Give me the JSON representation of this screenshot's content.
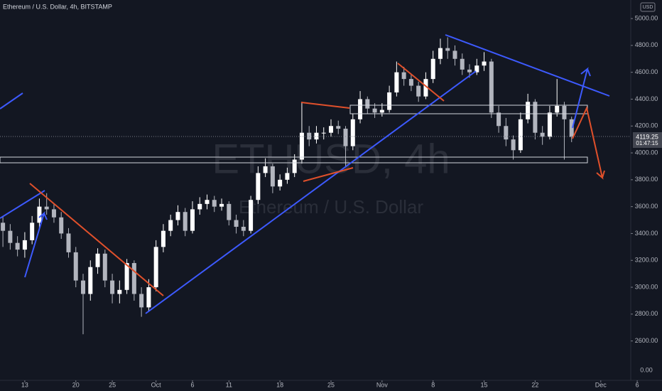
{
  "chart_data": {
    "type": "candlestick",
    "title": "Ethereum / U.S. Dollar, 4h, BITSTAMP",
    "watermark": "ETHUSD, 4h",
    "watermark_subtitle": "Ethereum / U.S. Dollar",
    "currency": "USD",
    "last_price_label": "4119.25",
    "countdown": "01:47:15",
    "bottom_pane_label": "0.00",
    "up_color": "#ffffff",
    "down_color": "#b2b5be",
    "open": [
      3480,
      3420,
      3330,
      3280,
      3350,
      3480,
      3600,
      3580,
      3520,
      3400,
      3260,
      3050,
      2950,
      3150,
      3250,
      3050,
      2950,
      2980,
      3180,
      2950,
      2850,
      3000,
      3300,
      3420,
      3500,
      3560,
      3420,
      3580,
      3620,
      3650,
      3600,
      3620,
      3500,
      3450,
      3420,
      3650,
      3850,
      3900,
      3750,
      3800,
      3850,
      3950,
      4150,
      4100,
      4150,
      4150,
      4200,
      4180,
      4050,
      4250,
      4400,
      4330,
      4300,
      4320,
      4450,
      4600,
      4550,
      4500,
      4420,
      4550,
      4700,
      4780,
      4760,
      4700,
      4620,
      4600,
      4650,
      4680,
      4300,
      4200,
      4100,
      4020,
      4250,
      4380,
      4150,
      4120,
      4300,
      4350,
      4250
    ],
    "high": [
      3530,
      3470,
      3380,
      3410,
      3530,
      3660,
      3700,
      3620,
      3560,
      3440,
      3300,
      3100,
      3200,
      3290,
      3280,
      3100,
      3050,
      3210,
      3200,
      3000,
      3060,
      3350,
      3470,
      3540,
      3610,
      3590,
      3640,
      3670,
      3690,
      3680,
      3660,
      3640,
      3540,
      3500,
      3680,
      3900,
      3960,
      3920,
      3840,
      3890,
      3990,
      4380,
      4200,
      4200,
      4190,
      4250,
      4240,
      4200,
      4290,
      4460,
      4420,
      4370,
      4370,
      4500,
      4680,
      4640,
      4580,
      4530,
      4600,
      4760,
      4850,
      4860,
      4800,
      4740,
      4660,
      4700,
      4750,
      4700,
      4350,
      4260,
      4130,
      4300,
      4440,
      4400,
      4200,
      4350,
      4550,
      4380,
      4270
    ],
    "low": [
      3300,
      3280,
      3230,
      3220,
      3320,
      3440,
      3540,
      3480,
      3360,
      3220,
      3000,
      2650,
      2900,
      3100,
      3000,
      2880,
      2880,
      2950,
      2900,
      2780,
      2820,
      2970,
      3260,
      3380,
      3460,
      3380,
      3400,
      3540,
      3580,
      3560,
      3570,
      3460,
      3400,
      3380,
      3400,
      3620,
      3820,
      3700,
      3720,
      3770,
      3820,
      3920,
      4050,
      4070,
      4100,
      4120,
      4140,
      3900,
      4020,
      4220,
      4290,
      4260,
      4270,
      4300,
      4420,
      4500,
      4460,
      4380,
      4400,
      4520,
      4660,
      4700,
      4650,
      4580,
      4560,
      4580,
      4610,
      4260,
      4150,
      4050,
      3950,
      4000,
      4220,
      4100,
      4060,
      4100,
      4270,
      3950,
      4080
    ],
    "close": [
      3420,
      3330,
      3280,
      3350,
      3480,
      3600,
      3580,
      3520,
      3400,
      3260,
      3050,
      2950,
      3150,
      3250,
      3050,
      2950,
      2980,
      3180,
      2950,
      2850,
      3000,
      3300,
      3420,
      3500,
      3560,
      3420,
      3580,
      3620,
      3650,
      3600,
      3620,
      3500,
      3450,
      3420,
      3650,
      3850,
      3900,
      3750,
      3800,
      3850,
      3950,
      4150,
      4100,
      4150,
      4150,
      4200,
      4180,
      4050,
      4250,
      4400,
      4330,
      4300,
      4320,
      4450,
      4600,
      4550,
      4500,
      4420,
      4550,
      4700,
      4780,
      4760,
      4700,
      4620,
      4600,
      4650,
      4680,
      4300,
      4200,
      4100,
      4020,
      4250,
      4380,
      4150,
      4120,
      4300,
      4350,
      4250,
      4119.25
    ],
    "xlim": [
      -0.4,
      90.4
    ],
    "xticks": [
      {
        "value": 3,
        "label": "13"
      },
      {
        "value": 10,
        "label": "20"
      },
      {
        "value": 15,
        "label": "25"
      },
      {
        "value": 21,
        "label": "Oct"
      },
      {
        "value": 26,
        "label": "6"
      },
      {
        "value": 31,
        "label": "11"
      },
      {
        "value": 38,
        "label": "18"
      },
      {
        "value": 45,
        "label": "25"
      },
      {
        "value": 52,
        "label": "Nov"
      },
      {
        "value": 59,
        "label": "8"
      },
      {
        "value": 66,
        "label": "15"
      },
      {
        "value": 73,
        "label": "22"
      },
      {
        "value": 82,
        "label": "Dec"
      },
      {
        "value": 87,
        "label": "6"
      }
    ],
    "ylim": [
      2307,
      5138
    ],
    "yticks": [
      {
        "value": 5000,
        "label": "5000.00"
      },
      {
        "value": 4800,
        "label": "4800.00"
      },
      {
        "value": 4600,
        "label": "4600.00"
      },
      {
        "value": 4400,
        "label": "4400.00"
      },
      {
        "value": 4200,
        "label": "4200.00"
      },
      {
        "value": 4000,
        "label": "4000.00"
      },
      {
        "value": 3800,
        "label": "3800.00"
      },
      {
        "value": 3600,
        "label": "3600.00"
      },
      {
        "value": 3400,
        "label": "3400.00"
      },
      {
        "value": 3200,
        "label": "3200.00"
      },
      {
        "value": 3000,
        "label": "3000.00"
      },
      {
        "value": 2800,
        "label": "2800.00"
      },
      {
        "value": 2600,
        "label": "2600.00"
      }
    ]
  }
}
